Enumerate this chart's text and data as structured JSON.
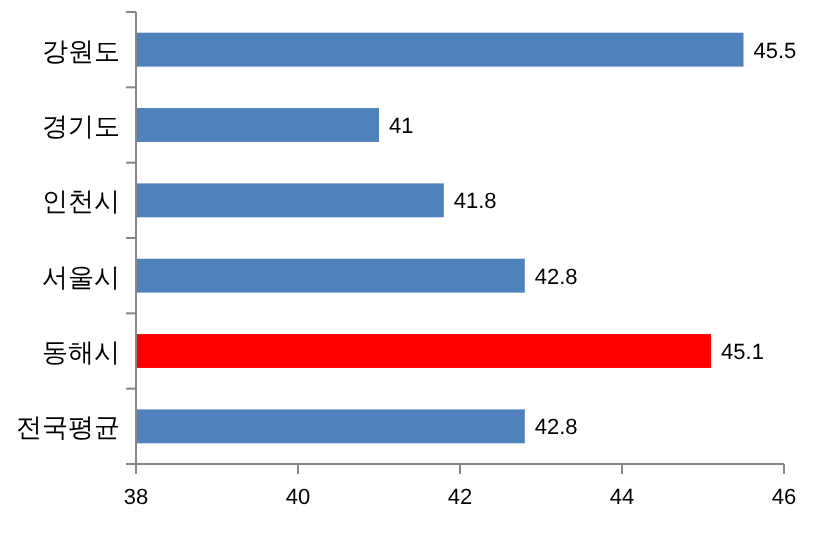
{
  "chart_data": {
    "type": "bar",
    "orientation": "horizontal",
    "categories": [
      "강원도",
      "경기도",
      "인천시",
      "서울시",
      "동해시",
      "전국평균"
    ],
    "values": [
      45.5,
      41,
      41.8,
      42.8,
      45.1,
      42.8
    ],
    "colors": [
      "#4f81bd",
      "#4f81bd",
      "#4f81bd",
      "#4f81bd",
      "#ff0000",
      "#4f81bd"
    ],
    "xlim": [
      38,
      46
    ],
    "xticks": [
      38,
      40,
      42,
      44,
      46
    ],
    "data_labels": true,
    "grid": false
  }
}
